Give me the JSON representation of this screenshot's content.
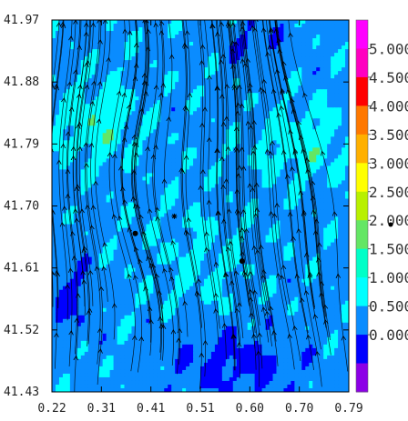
{
  "chart_data": {
    "type": "heatmap",
    "title": "",
    "xlabel": "",
    "ylabel": "",
    "x_ticks": [
      "0.22",
      "0.31",
      "0.41",
      "0.51",
      "0.60",
      "0.70",
      "0.79"
    ],
    "y_ticks": [
      "41.97",
      "41.88",
      "41.79",
      "41.70",
      "41.61",
      "41.52",
      "41.43"
    ],
    "xlim": [
      0.22,
      0.79
    ],
    "ylim": [
      41.43,
      41.97
    ],
    "overlay": "streamlines",
    "colorbar": {
      "labels": [
        "5.000",
        "4.500",
        "4.000",
        "3.500",
        "3.000",
        "2.500",
        "2.000",
        "1.500",
        "1.000",
        "0.500",
        "0.000"
      ],
      "band_colors": [
        "#ff00ff",
        "#ff00c0",
        "#ff0000",
        "#ff7800",
        "#ffb000",
        "#ffff00",
        "#b8f000",
        "#64e664",
        "#00ffc8",
        "#00ffff",
        "#0a8cff",
        "#0000ff",
        "#8c00e6"
      ]
    },
    "markers": [
      {
        "x": 0.38,
        "y": 41.66
      },
      {
        "x": 0.585,
        "y": 41.62
      }
    ],
    "star": {
      "x": 0.455,
      "y": 41.685
    },
    "field_levels": [
      "0.000-0.500",
      "0.500-1.000",
      "1.000-1.500",
      "1.500-2.000"
    ]
  }
}
